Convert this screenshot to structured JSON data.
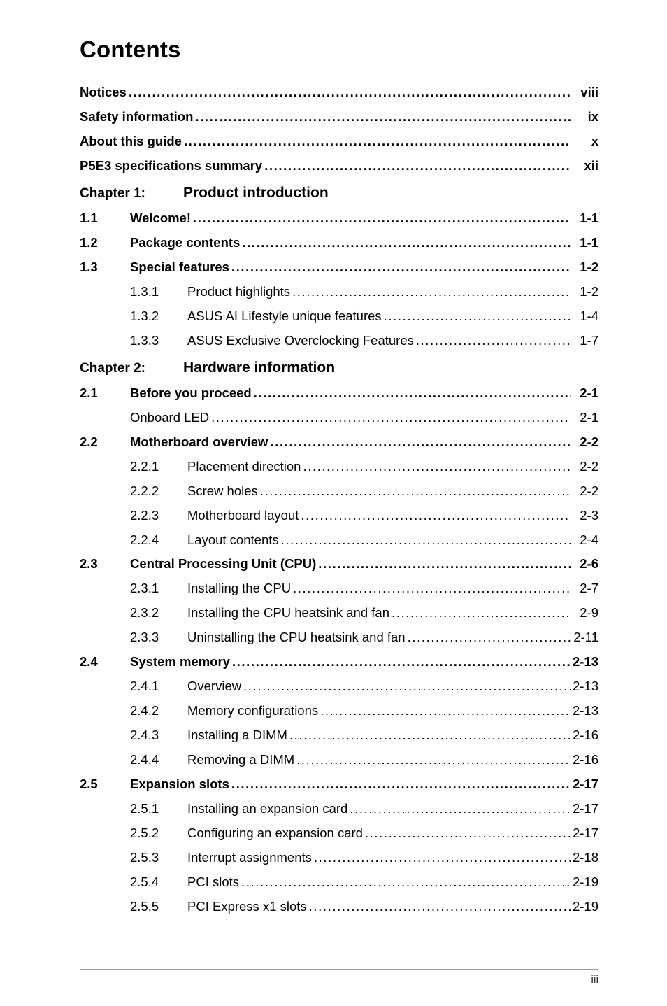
{
  "title": "Contents",
  "footer_page": "iii",
  "front": [
    {
      "label": "Notices",
      "page": "viii"
    },
    {
      "label": "Safety information",
      "page": "ix"
    },
    {
      "label": "About this guide",
      "page": "x"
    },
    {
      "label": "P5E3 specifications summary",
      "page": "xii"
    }
  ],
  "chapters": [
    {
      "chapter_label": "Chapter 1:",
      "chapter_title": "Product introduction",
      "sections": [
        {
          "num": "1.1",
          "label": "Welcome!",
          "page": "1-1",
          "bold": true,
          "sub": []
        },
        {
          "num": "1.2",
          "label": "Package contents",
          "page": "1-1",
          "bold": true,
          "sub": []
        },
        {
          "num": "1.3",
          "label": "Special features",
          "page": "1-2",
          "bold": true,
          "sub": [
            {
              "num": "1.3.1",
              "label": "Product highlights",
              "page": "1-2"
            },
            {
              "num": "1.3.2",
              "label": "ASUS AI Lifestyle unique features",
              "page": "1-4"
            },
            {
              "num": "1.3.3",
              "label": "ASUS Exclusive Overclocking Features",
              "page": "1-7"
            }
          ]
        }
      ]
    },
    {
      "chapter_label": "Chapter 2:",
      "chapter_title": "Hardware information",
      "sections": [
        {
          "num": "2.1",
          "label": "Before you proceed",
          "page": "2-1",
          "bold": true,
          "sub": [
            {
              "num": "",
              "label": "Onboard LED",
              "page": "2-1"
            }
          ]
        },
        {
          "num": "2.2",
          "label": "Motherboard overview",
          "page": "2-2",
          "bold": true,
          "sub": [
            {
              "num": "2.2.1",
              "label": "Placement direction",
              "page": "2-2"
            },
            {
              "num": "2.2.2",
              "label": "Screw holes",
              "page": "2-2"
            },
            {
              "num": "2.2.3",
              "label": "Motherboard layout",
              "page": "2-3"
            },
            {
              "num": "2.2.4",
              "label": "Layout contents",
              "page": "2-4"
            }
          ]
        },
        {
          "num": "2.3",
          "label": "Central Processing Unit (CPU)",
          "page": "2-6",
          "bold": true,
          "sub": [
            {
              "num": "2.3.1",
              "label": "Installing the CPU",
              "page": "2-7"
            },
            {
              "num": "2.3.2",
              "label": "Installing the CPU heatsink and fan",
              "page": "2-9"
            },
            {
              "num": "2.3.3",
              "label": "Uninstalling the CPU heatsink and fan",
              "page": "2-11"
            }
          ]
        },
        {
          "num": "2.4",
          "label": "System memory",
          "page": "2-13",
          "bold": true,
          "sub": [
            {
              "num": "2.4.1",
              "label": "Overview",
              "page": "2-13"
            },
            {
              "num": "2.4.2",
              "label": "Memory configurations",
              "page": "2-13"
            },
            {
              "num": "2.4.3",
              "label": "Installing a DIMM",
              "page": "2-16"
            },
            {
              "num": "2.4.4",
              "label": "Removing a DIMM",
              "page": "2-16"
            }
          ]
        },
        {
          "num": "2.5",
          "label": "Expansion slots",
          "page": "2-17",
          "bold": true,
          "sub": [
            {
              "num": "2.5.1",
              "label": "Installing an expansion card",
              "page": "2-17"
            },
            {
              "num": "2.5.2",
              "label": "Configuring an expansion card",
              "page": "2-17"
            },
            {
              "num": "2.5.3",
              "label": "Interrupt assignments",
              "page": "2-18"
            },
            {
              "num": "2.5.4",
              "label": "PCI slots",
              "page": "2-19"
            },
            {
              "num": "2.5.5",
              "label": "PCI Express x1 slots",
              "page": "2-19"
            }
          ]
        }
      ]
    }
  ]
}
